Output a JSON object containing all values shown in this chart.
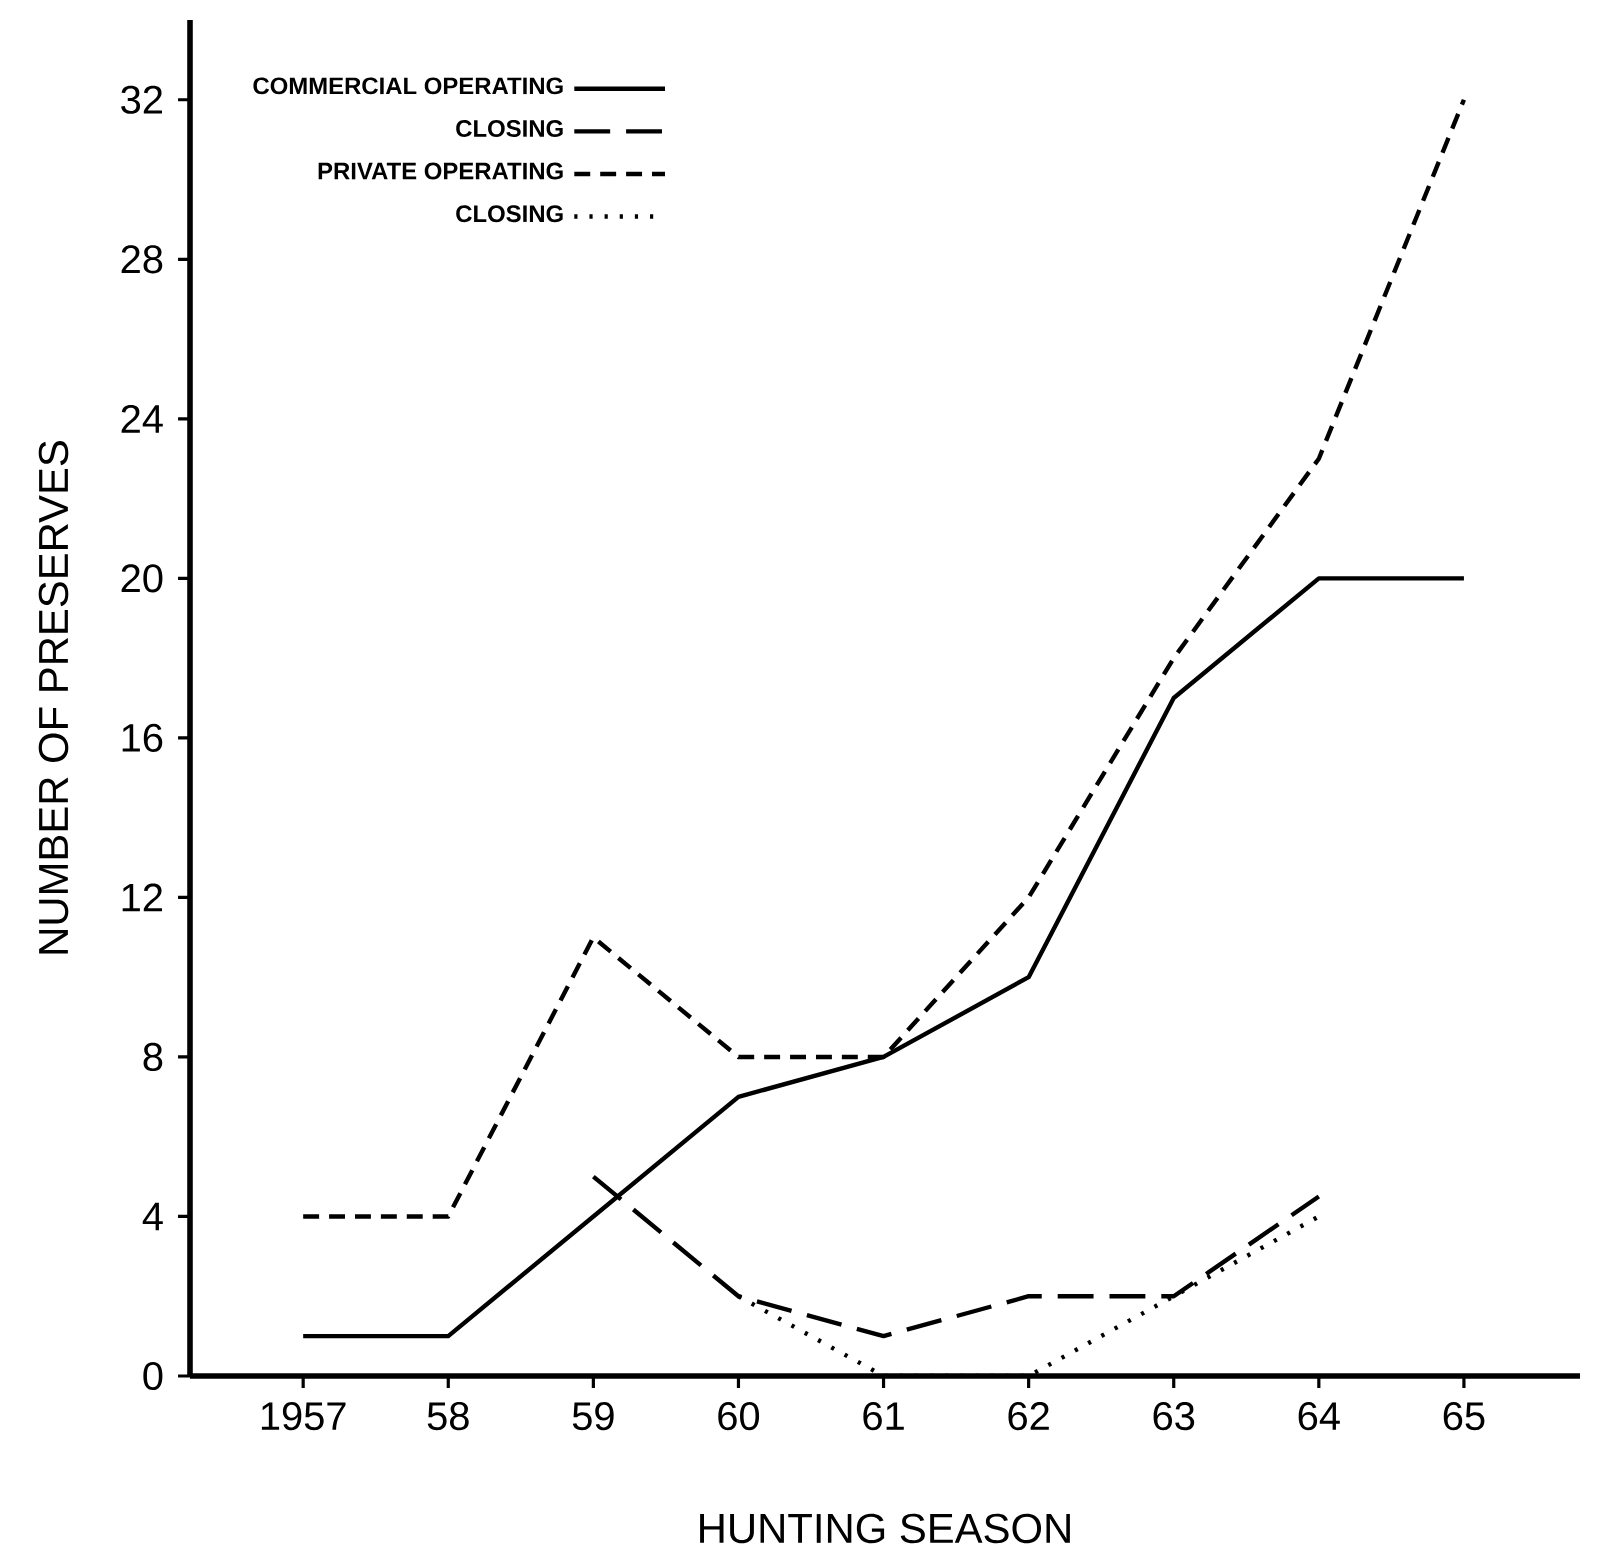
{
  "chart_data": {
    "type": "line",
    "xlabel": "HUNTING   SEASON",
    "ylabel": "NUMBER OF PRESERVES",
    "categories": [
      "1957",
      "58",
      "59",
      "60",
      "61",
      "62",
      "63",
      "64",
      "65"
    ],
    "ylim": [
      0,
      34
    ],
    "yticks": [
      0,
      4,
      8,
      12,
      16,
      20,
      24,
      28,
      32
    ],
    "legend": "top left",
    "series": [
      {
        "name": "COMMERCIAL OPERATING",
        "color": "#000000",
        "line_style": "solid",
        "values": [
          1,
          1,
          4,
          7,
          8,
          10,
          17,
          20,
          20
        ]
      },
      {
        "name": "CLOSING",
        "color": "#000000",
        "line_style": "long dashed",
        "values": [
          null,
          null,
          5,
          2,
          1,
          2,
          2,
          4.5,
          null
        ]
      },
      {
        "name": "PRIVATE  OPERATING",
        "color": "#000000",
        "line_style": "dashed",
        "values": [
          4,
          4,
          11,
          8,
          8,
          12,
          18,
          23,
          32
        ]
      },
      {
        "name": "CLOSING",
        "color": "#000000",
        "line_style": "dotted",
        "values": [
          null,
          null,
          null,
          2,
          0,
          0,
          2,
          4,
          null
        ]
      }
    ]
  }
}
